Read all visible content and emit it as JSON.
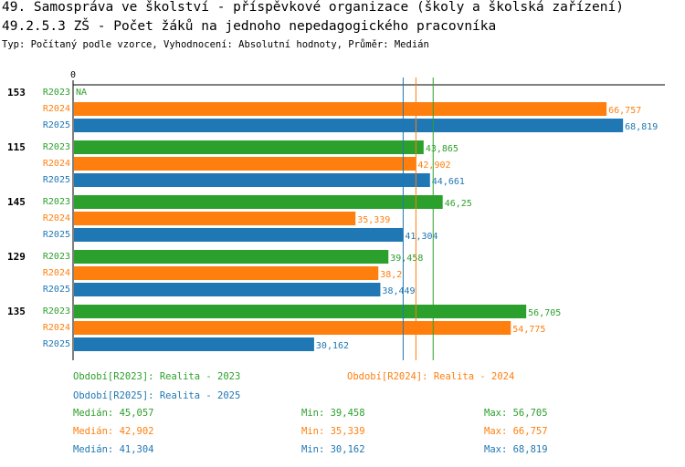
{
  "title_line1": "49. Samospráva ve školství - příspěvkové organizace (školy a školská zařízení)",
  "title_line2": "49.2.5.3 ZŠ - Počet žáků na jednoho nepedagogického pracovníka",
  "subtitle": "Typ: Počítaný podle vzorce, Vyhodnocení: Absolutní hodnoty, Průměr: Medián",
  "colors": {
    "R2023": "#2ca02c",
    "R2024": "#ff7f0e",
    "R2025": "#1f77b4"
  },
  "chart_data": {
    "type": "bar",
    "orientation": "horizontal",
    "axis_zero_label": "0",
    "xlim": [
      0,
      70
    ],
    "categories": [
      "153",
      "115",
      "145",
      "129",
      "135"
    ],
    "series": [
      {
        "name": "R2023",
        "values": [
          null,
          43.865,
          46.25,
          39.458,
          56.705
        ],
        "labels": [
          "NA",
          "43,865",
          "46,25",
          "39,458",
          "56,705"
        ]
      },
      {
        "name": "R2024",
        "values": [
          66.757,
          42.902,
          35.339,
          38.2,
          54.775
        ],
        "labels": [
          "66,757",
          "42,902",
          "35,339",
          "38,2",
          "54,775"
        ]
      },
      {
        "name": "R2025",
        "values": [
          68.819,
          44.661,
          41.304,
          38.449,
          30.162
        ],
        "labels": [
          "68,819",
          "44,661",
          "41,304",
          "38,449",
          "30,162"
        ]
      }
    ],
    "median_lines": [
      {
        "series": "R2023",
        "value": 45.057
      },
      {
        "series": "R2024",
        "value": 42.902
      },
      {
        "series": "R2025",
        "value": 41.304
      }
    ]
  },
  "legend": {
    "r2023": "Období[R2023]: Realita - 2023",
    "r2024": "Období[R2024]: Realita - 2024",
    "r2025": "Období[R2025]: Realita - 2025"
  },
  "stats": [
    {
      "median": "Medián: 45,057",
      "min": "Min: 39,458",
      "max": "Max: 56,705"
    },
    {
      "median": "Medián: 42,902",
      "min": "Min: 35,339",
      "max": "Max: 66,757"
    },
    {
      "median": "Medián: 41,304",
      "min": "Min: 30,162",
      "max": "Max: 68,819"
    }
  ]
}
